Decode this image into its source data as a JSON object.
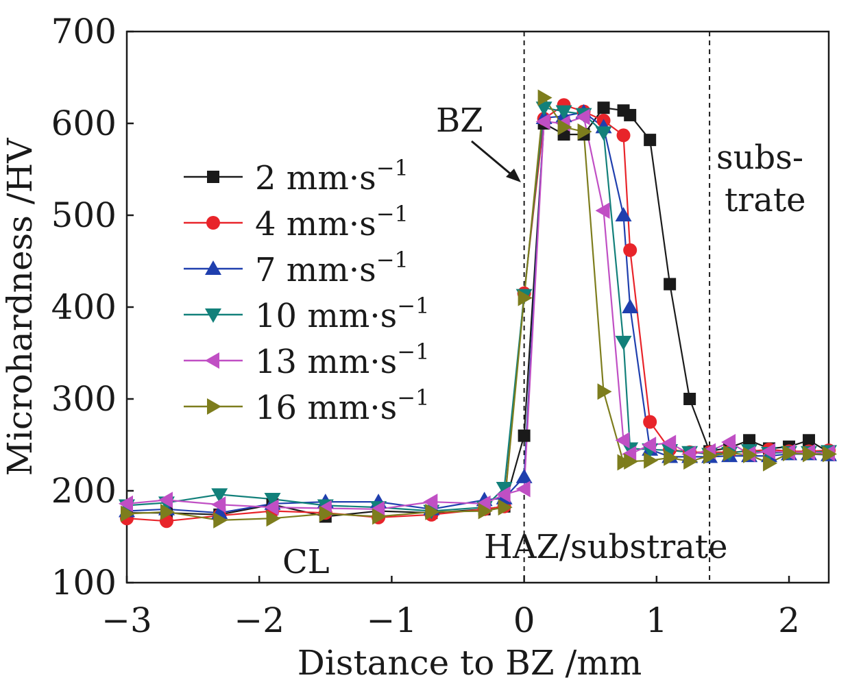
{
  "chart_data": {
    "type": "line",
    "title": "",
    "xlabel": "Distance to BZ /mm",
    "ylabel": "Microhardness /HV",
    "xlim": [
      -3,
      2.3
    ],
    "ylim": [
      100,
      700
    ],
    "xticks": [
      -3,
      -2,
      -1,
      0,
      1,
      2
    ],
    "xtick_labels": [
      "−3",
      "−2",
      "−1",
      "0",
      "1",
      "2"
    ],
    "yticks": [
      100,
      200,
      300,
      400,
      500,
      600,
      700
    ],
    "ytick_labels": [
      "100",
      "200",
      "300",
      "400",
      "500",
      "600",
      "700"
    ],
    "grid": false,
    "legend_position": "upper-left",
    "vlines": [
      0,
      1.4
    ],
    "annotations": {
      "bz": "BZ",
      "substrate_line1": "subs-",
      "substrate_line2": "trate",
      "cl": "CL",
      "haz": "HAZ/substrate"
    },
    "series": [
      {
        "name": "2 mm·s",
        "superscript": "−1",
        "color": "#1a1a1a",
        "marker": "square",
        "x": [
          -3.0,
          -2.7,
          -2.3,
          -1.9,
          -1.5,
          -1.1,
          -0.7,
          -0.3,
          -0.15,
          0.0,
          0.15,
          0.3,
          0.45,
          0.6,
          0.75,
          0.8,
          0.95,
          1.1,
          1.25,
          1.4,
          1.55,
          1.7,
          1.85,
          2.0,
          2.15,
          2.3
        ],
        "y": [
          176,
          176,
          174,
          185,
          172,
          178,
          176,
          180,
          183,
          260,
          600,
          588,
          588,
          617,
          614,
          609,
          582,
          425,
          300,
          243,
          247,
          255,
          246,
          248,
          255,
          242
        ]
      },
      {
        "name": "4 mm·s",
        "superscript": "−1",
        "color": "#e8242a",
        "marker": "circle",
        "x": [
          -3.0,
          -2.7,
          -2.3,
          -1.9,
          -1.5,
          -1.1,
          -0.7,
          -0.3,
          -0.15,
          0.0,
          0.15,
          0.3,
          0.45,
          0.6,
          0.75,
          0.8,
          0.95,
          1.1,
          1.25,
          1.4,
          1.55,
          1.7,
          1.85,
          2.0,
          2.15,
          2.3
        ],
        "y": [
          170,
          167,
          173,
          178,
          176,
          171,
          174,
          180,
          183,
          415,
          605,
          620,
          613,
          603,
          587,
          462,
          275,
          245,
          242,
          242,
          242,
          243,
          245,
          243,
          243,
          244
        ]
      },
      {
        "name": "7 mm·s",
        "superscript": "−1",
        "color": "#1f3fae",
        "marker": "triangle-up",
        "x": [
          -3.0,
          -2.7,
          -2.3,
          -1.9,
          -1.5,
          -1.1,
          -0.7,
          -0.3,
          -0.15,
          0.0,
          0.15,
          0.3,
          0.45,
          0.6,
          0.75,
          0.8,
          0.95,
          1.1,
          1.25,
          1.4,
          1.55,
          1.7,
          1.85,
          2.0,
          2.15,
          2.3
        ],
        "y": [
          178,
          180,
          176,
          186,
          188,
          188,
          180,
          190,
          192,
          215,
          606,
          608,
          612,
          596,
          500,
          400,
          245,
          237,
          237,
          237,
          238,
          238,
          238,
          240,
          240,
          239
        ]
      },
      {
        "name": "10 mm·s",
        "superscript": "−1",
        "color": "#12807a",
        "marker": "triangle-down",
        "x": [
          -3.0,
          -2.7,
          -2.3,
          -1.9,
          -1.5,
          -1.1,
          -0.7,
          -0.3,
          -0.15,
          0.0,
          0.15,
          0.3,
          0.45,
          0.6,
          0.75,
          0.8,
          0.95,
          1.1,
          1.25,
          1.4,
          1.55,
          1.7,
          1.85,
          2.0,
          2.15,
          2.3
        ],
        "y": [
          184,
          187,
          196,
          191,
          184,
          182,
          178,
          182,
          203,
          413,
          617,
          613,
          610,
          590,
          362,
          246,
          245,
          244,
          242,
          240,
          241,
          244,
          241,
          242,
          242,
          243
        ]
      },
      {
        "name": "13 mm·s",
        "superscript": "−1",
        "color": "#c04fc4",
        "marker": "triangle-left",
        "x": [
          -3.0,
          -2.7,
          -2.3,
          -1.9,
          -1.5,
          -1.1,
          -0.7,
          -0.3,
          -0.15,
          0.0,
          0.15,
          0.3,
          0.45,
          0.6,
          0.75,
          0.8,
          0.95,
          1.1,
          1.25,
          1.4,
          1.55,
          1.7,
          1.85,
          2.0,
          2.15,
          2.3
        ],
        "y": [
          186,
          190,
          185,
          182,
          181,
          180,
          188,
          186,
          196,
          202,
          602,
          600,
          607,
          505,
          255,
          240,
          250,
          252,
          240,
          243,
          253,
          240,
          243,
          242,
          242,
          241
        ]
      },
      {
        "name": "16 mm·s",
        "superscript": "−1",
        "color": "#7d7d1d",
        "marker": "triangle-right",
        "x": [
          -3.0,
          -2.7,
          -2.3,
          -1.9,
          -1.5,
          -1.1,
          -0.7,
          -0.3,
          -0.15,
          0.0,
          0.15,
          0.3,
          0.45,
          0.6,
          0.75,
          0.8,
          0.95,
          1.1,
          1.25,
          1.4,
          1.55,
          1.7,
          1.85,
          2.0,
          2.15,
          2.3
        ],
        "y": [
          175,
          177,
          168,
          170,
          175,
          172,
          177,
          178,
          182,
          410,
          628,
          596,
          591,
          308,
          231,
          232,
          233,
          236,
          232,
          238,
          241,
          239,
          230,
          241,
          240,
          240
        ]
      }
    ]
  }
}
